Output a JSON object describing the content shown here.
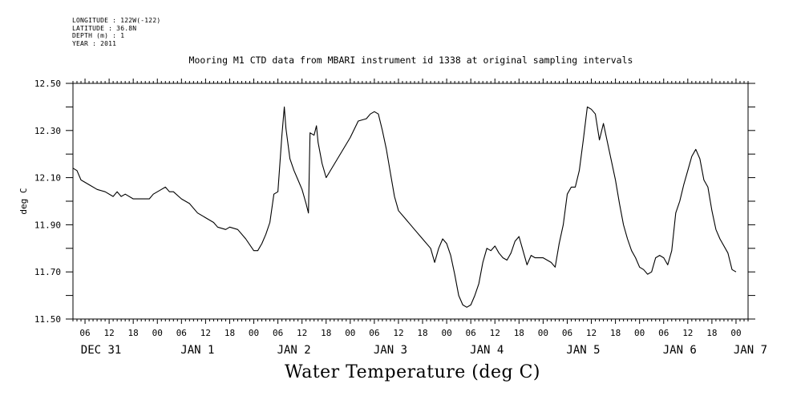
{
  "meta": [
    "LONGITUDE : 122W(-122)",
    "LATITUDE : 36.8N",
    "DEPTH (m) : 1",
    "YEAR : 2011"
  ],
  "chart_data": {
    "type": "line",
    "title": "Mooring M1 CTD data from MBARI instrument id 1338 at original sampling intervals",
    "xlabel": "Water Temperature (deg C)",
    "ylabel": "deg C",
    "ylim": [
      11.5,
      12.5
    ],
    "yticks": [
      "11.50",
      "11.70",
      "11.90",
      "12.10",
      "12.30",
      "12.50"
    ],
    "x_unit": "hours since DEC 31 00:00",
    "xlim": [
      3,
      171
    ],
    "hour_tick_labels": [
      "06",
      "12",
      "18",
      "00",
      "06",
      "12",
      "18",
      "00",
      "06",
      "12",
      "18",
      "00",
      "06",
      "12",
      "18",
      "00",
      "06",
      "12",
      "18",
      "00",
      "06",
      "12",
      "18",
      "00",
      "06",
      "12",
      "18",
      "00"
    ],
    "day_labels": [
      "DEC 31",
      "JAN  1",
      "JAN  2",
      "JAN  3",
      "JAN  4",
      "JAN  5",
      "JAN  6",
      "JAN  7"
    ],
    "series": [
      {
        "points": [
          [
            3,
            12.14
          ],
          [
            4,
            12.13
          ],
          [
            5,
            12.09
          ],
          [
            7,
            12.07
          ],
          [
            9,
            12.05
          ],
          [
            11,
            12.04
          ],
          [
            13,
            12.02
          ],
          [
            14,
            12.04
          ],
          [
            15,
            12.02
          ],
          [
            16,
            12.03
          ],
          [
            18,
            12.01
          ],
          [
            20,
            12.01
          ],
          [
            22,
            12.01
          ],
          [
            23,
            12.03
          ],
          [
            25,
            12.05
          ],
          [
            26,
            12.06
          ],
          [
            27,
            12.04
          ],
          [
            28,
            12.04
          ],
          [
            30,
            12.01
          ],
          [
            32,
            11.99
          ],
          [
            34,
            11.95
          ],
          [
            36,
            11.93
          ],
          [
            38,
            11.91
          ],
          [
            39,
            11.89
          ],
          [
            41,
            11.88
          ],
          [
            42,
            11.89
          ],
          [
            44,
            11.88
          ],
          [
            46,
            11.84
          ],
          [
            48,
            11.79
          ],
          [
            49,
            11.79
          ],
          [
            50,
            11.82
          ],
          [
            51,
            11.86
          ],
          [
            52,
            11.91
          ],
          [
            53,
            12.03
          ],
          [
            54,
            12.04
          ],
          [
            55,
            12.28
          ],
          [
            55.6,
            12.4
          ],
          [
            56,
            12.31
          ],
          [
            57,
            12.18
          ],
          [
            58,
            12.13
          ],
          [
            59,
            12.09
          ],
          [
            60,
            12.05
          ],
          [
            61,
            11.99
          ],
          [
            61.6,
            11.95
          ],
          [
            62,
            12.29
          ],
          [
            63,
            12.28
          ],
          [
            63.6,
            12.32
          ],
          [
            64,
            12.25
          ],
          [
            65,
            12.16
          ],
          [
            66,
            12.1
          ],
          [
            72,
            12.27
          ],
          [
            74,
            12.34
          ],
          [
            76,
            12.35
          ],
          [
            77,
            12.37
          ],
          [
            78,
            12.38
          ],
          [
            79,
            12.37
          ],
          [
            80,
            12.3
          ],
          [
            81,
            12.22
          ],
          [
            82,
            12.12
          ],
          [
            83,
            12.02
          ],
          [
            84,
            11.96
          ],
          [
            86,
            11.92
          ],
          [
            88,
            11.88
          ],
          [
            90,
            11.84
          ],
          [
            92,
            11.8
          ],
          [
            93,
            11.74
          ],
          [
            94,
            11.8
          ],
          [
            95,
            11.84
          ],
          [
            96,
            11.82
          ],
          [
            97,
            11.77
          ],
          [
            98,
            11.69
          ],
          [
            99,
            11.6
          ],
          [
            100,
            11.56
          ],
          [
            101,
            11.55
          ],
          [
            102,
            11.56
          ],
          [
            103,
            11.6
          ],
          [
            104,
            11.65
          ],
          [
            105,
            11.74
          ],
          [
            106,
            11.8
          ],
          [
            107,
            11.79
          ],
          [
            108,
            11.81
          ],
          [
            109,
            11.78
          ],
          [
            110,
            11.76
          ],
          [
            111,
            11.75
          ],
          [
            112,
            11.78
          ],
          [
            113,
            11.83
          ],
          [
            114,
            11.85
          ],
          [
            115,
            11.79
          ],
          [
            116,
            11.73
          ],
          [
            117,
            11.77
          ],
          [
            118,
            11.76
          ],
          [
            120,
            11.76
          ],
          [
            122,
            11.74
          ],
          [
            123,
            11.72
          ],
          [
            124,
            11.82
          ],
          [
            125,
            11.9
          ],
          [
            126,
            12.03
          ],
          [
            127,
            12.06
          ],
          [
            128,
            12.06
          ],
          [
            129,
            12.13
          ],
          [
            130,
            12.26
          ],
          [
            131,
            12.4
          ],
          [
            132,
            12.39
          ],
          [
            133,
            12.37
          ],
          [
            134,
            12.26
          ],
          [
            135,
            12.33
          ],
          [
            136,
            12.25
          ],
          [
            137,
            12.17
          ],
          [
            138,
            12.09
          ],
          [
            139,
            11.99
          ],
          [
            140,
            11.9
          ],
          [
            141,
            11.84
          ],
          [
            142,
            11.79
          ],
          [
            143,
            11.76
          ],
          [
            144,
            11.72
          ],
          [
            145,
            11.71
          ],
          [
            146,
            11.69
          ],
          [
            147,
            11.7
          ],
          [
            148,
            11.76
          ],
          [
            149,
            11.77
          ],
          [
            150,
            11.76
          ],
          [
            151,
            11.73
          ],
          [
            152,
            11.79
          ],
          [
            153,
            11.95
          ],
          [
            154,
            12.0
          ],
          [
            155,
            12.07
          ],
          [
            156,
            12.13
          ],
          [
            157,
            12.19
          ],
          [
            158,
            12.22
          ],
          [
            159,
            12.18
          ],
          [
            160,
            12.09
          ],
          [
            161,
            12.06
          ],
          [
            162,
            11.96
          ],
          [
            163,
            11.88
          ],
          [
            164,
            11.84
          ],
          [
            166,
            11.78
          ],
          [
            167,
            11.71
          ],
          [
            168,
            11.7
          ]
        ]
      }
    ]
  }
}
